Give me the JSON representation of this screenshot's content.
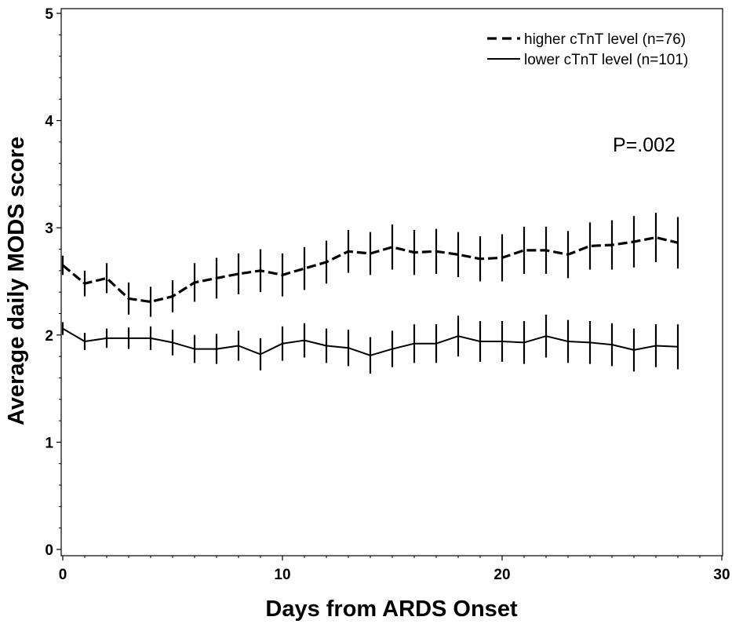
{
  "chart_data": {
    "type": "line",
    "xlabel": "Days from ARDS Onset",
    "ylabel": "Average daily MODS score",
    "xlim": [
      0,
      30
    ],
    "ylim": [
      0,
      5
    ],
    "xticks": [
      0,
      10,
      20,
      30
    ],
    "yticks": [
      0,
      1,
      2,
      3,
      4,
      5
    ],
    "grid": false,
    "legend_position": "top-right",
    "annotation": "P=.002",
    "x": [
      0,
      1,
      2,
      3,
      4,
      5,
      6,
      7,
      8,
      9,
      10,
      11,
      12,
      13,
      14,
      15,
      16,
      17,
      18,
      19,
      20,
      21,
      22,
      23,
      24,
      25,
      26,
      27,
      28
    ],
    "series": [
      {
        "name": "higher cTnT level (n=76)",
        "style": "dashed",
        "values": [
          2.65,
          2.48,
          2.53,
          2.34,
          2.31,
          2.36,
          2.49,
          2.53,
          2.57,
          2.6,
          2.56,
          2.62,
          2.68,
          2.78,
          2.76,
          2.82,
          2.77,
          2.78,
          2.75,
          2.71,
          2.72,
          2.79,
          2.79,
          2.75,
          2.83,
          2.84,
          2.87,
          2.91,
          2.86
        ],
        "error": [
          0.09,
          0.12,
          0.14,
          0.15,
          0.14,
          0.15,
          0.18,
          0.19,
          0.19,
          0.2,
          0.2,
          0.2,
          0.2,
          0.2,
          0.2,
          0.21,
          0.21,
          0.21,
          0.21,
          0.21,
          0.22,
          0.22,
          0.22,
          0.22,
          0.22,
          0.23,
          0.24,
          0.23,
          0.24
        ]
      },
      {
        "name": "lower cTnT level (n=101)",
        "style": "solid",
        "values": [
          2.06,
          1.94,
          1.97,
          1.97,
          1.97,
          1.93,
          1.87,
          1.87,
          1.9,
          1.82,
          1.92,
          1.95,
          1.9,
          1.88,
          1.81,
          1.87,
          1.92,
          1.92,
          1.99,
          1.94,
          1.94,
          1.93,
          1.99,
          1.94,
          1.93,
          1.91,
          1.86,
          1.9,
          1.89
        ],
        "error": [
          0.06,
          0.08,
          0.09,
          0.1,
          0.11,
          0.12,
          0.13,
          0.14,
          0.14,
          0.15,
          0.16,
          0.16,
          0.16,
          0.17,
          0.17,
          0.17,
          0.18,
          0.18,
          0.19,
          0.19,
          0.19,
          0.2,
          0.2,
          0.2,
          0.2,
          0.2,
          0.2,
          0.2,
          0.21
        ]
      }
    ]
  },
  "colors": {
    "line": "#000000",
    "background": "#ffffff"
  }
}
